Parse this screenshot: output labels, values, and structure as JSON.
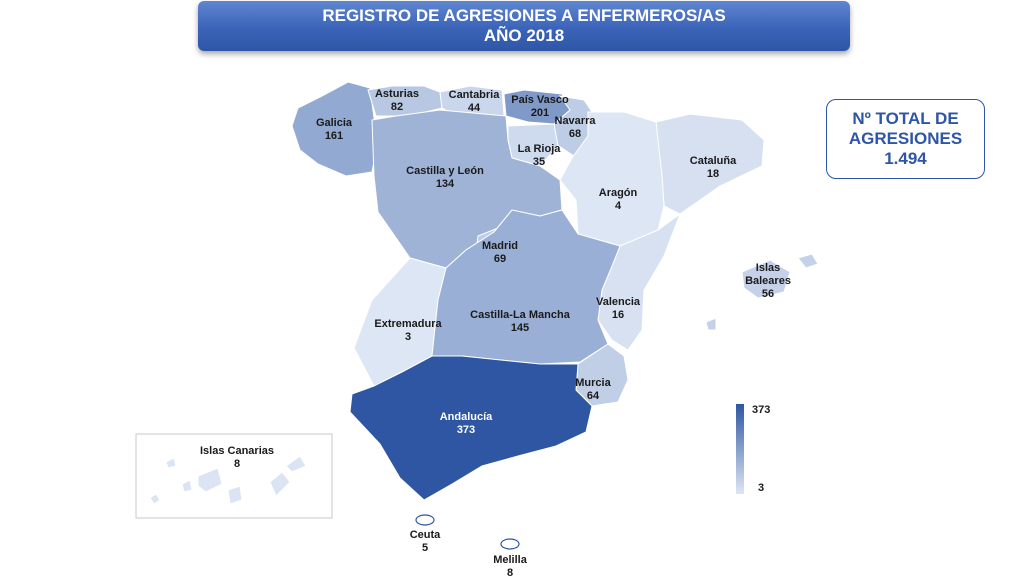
{
  "title": {
    "line1": "REGISTRO DE AGRESIONES A ENFERMEROS/AS",
    "line2": "AÑO 2018"
  },
  "total": {
    "line1": "Nº TOTAL DE",
    "line2": "AGRESIONES",
    "value": "1.494"
  },
  "legend": {
    "max": "373",
    "min": "3",
    "color_max": "#2e56a2",
    "color_min": "#dde6f4"
  },
  "regions": [
    {
      "id": "galicia",
      "name": "Galicia",
      "value": "161"
    },
    {
      "id": "asturias",
      "name": "Asturias",
      "value": "82"
    },
    {
      "id": "cantabria",
      "name": "Cantabria",
      "value": "44"
    },
    {
      "id": "pais-vasco",
      "name": "País Vasco",
      "value": "201"
    },
    {
      "id": "navarra",
      "name": "Navarra",
      "value": "68"
    },
    {
      "id": "la-rioja",
      "name": "La Rioja",
      "value": "35"
    },
    {
      "id": "castilla-y-leon",
      "name": "Castilla y León",
      "value": "134"
    },
    {
      "id": "cataluna",
      "name": "Cataluña",
      "value": "18"
    },
    {
      "id": "aragon",
      "name": "Aragón",
      "value": "4"
    },
    {
      "id": "madrid",
      "name": "Madrid",
      "value": "69"
    },
    {
      "id": "islas-baleares",
      "name": "Islas Baleares",
      "value": "56"
    },
    {
      "id": "valencia",
      "name": "Valencia",
      "value": "16"
    },
    {
      "id": "extremadura",
      "name": "Extremadura",
      "value": "3"
    },
    {
      "id": "castilla-la-mancha",
      "name": "Castilla-La Mancha",
      "value": "145"
    },
    {
      "id": "murcia",
      "name": "Murcia",
      "value": "64"
    },
    {
      "id": "andalucia",
      "name": "Andalucía",
      "value": "373"
    },
    {
      "id": "islas-canarias",
      "name": "Islas Canarias",
      "value": "8"
    },
    {
      "id": "ceuta",
      "name": "Ceuta",
      "value": "5"
    },
    {
      "id": "melilla",
      "name": "Melilla",
      "value": "8"
    }
  ]
}
